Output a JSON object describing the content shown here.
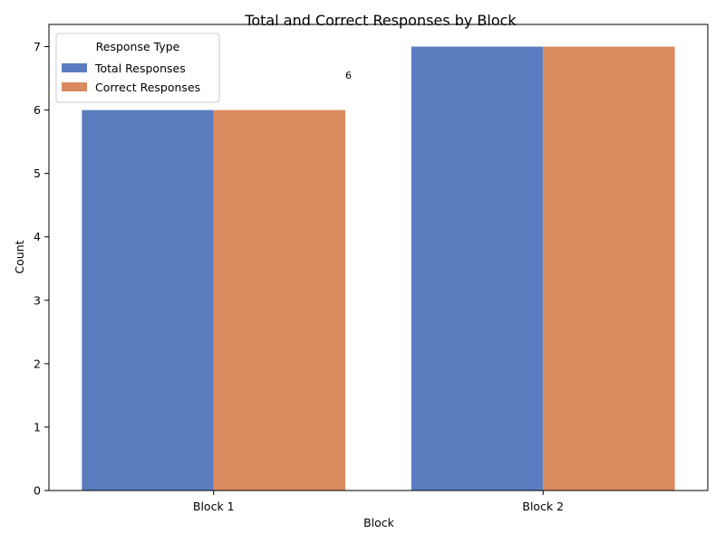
{
  "chart_data": {
    "type": "bar",
    "title": "Total and Correct Responses by Block",
    "xlabel": "Block",
    "ylabel": "Count",
    "categories": [
      "Block 1",
      "Block 2"
    ],
    "series": [
      {
        "name": "Total Responses",
        "values": [
          6,
          7
        ],
        "color": "#5b7dc0"
      },
      {
        "name": "Correct Responses",
        "values": [
          6,
          7
        ],
        "color": "#d98b5f"
      }
    ],
    "ylim": [
      0,
      7.35
    ],
    "yticks": [
      0,
      1,
      2,
      3,
      4,
      5,
      6,
      7
    ],
    "grid": false,
    "legend": {
      "title": "Response Type",
      "placement": "top-left"
    },
    "annotations": [
      {
        "text": "6",
        "x": "Block 1",
        "y": 6.55
      }
    ]
  }
}
